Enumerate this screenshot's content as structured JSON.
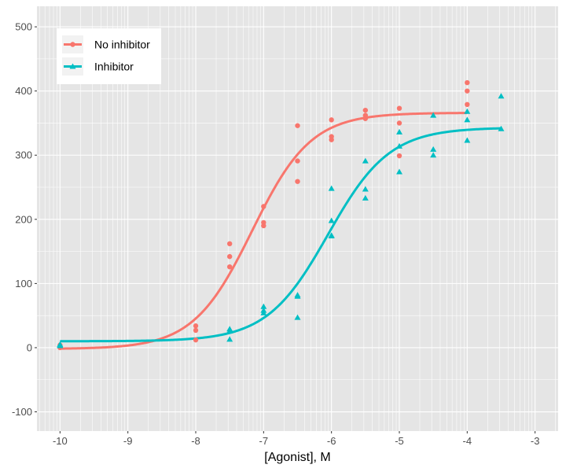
{
  "chart_data": {
    "type": "scatter",
    "title": "",
    "xlabel": "[Agonist], M",
    "ylabel": "",
    "xlim": [
      -10.34,
      -2.66
    ],
    "ylim": [
      -130,
      532
    ],
    "x_ticks": [
      -10,
      -9,
      -8,
      -7,
      -6,
      -5,
      -4,
      -3
    ],
    "y_ticks": [
      -100,
      0,
      100,
      200,
      300,
      400,
      500
    ],
    "grid": true,
    "x_minor_grid": "log-spaced within each decade",
    "legend_placement": "top-left",
    "background": "#e5e5e5",
    "series": [
      {
        "name": "No inhibitor",
        "color": "#f8766d",
        "marker": "circle",
        "points": [
          [
            -10,
            0
          ],
          [
            -10,
            2
          ],
          [
            -10,
            4
          ],
          [
            -8,
            34
          ],
          [
            -8,
            27
          ],
          [
            -8,
            12
          ],
          [
            -7.5,
            162
          ],
          [
            -7.5,
            142
          ],
          [
            -7.5,
            126
          ],
          [
            -7,
            220
          ],
          [
            -7,
            195
          ],
          [
            -7,
            190
          ],
          [
            -6.5,
            346
          ],
          [
            -6.5,
            291
          ],
          [
            -6.5,
            259
          ],
          [
            -6,
            355
          ],
          [
            -6,
            329
          ],
          [
            -6,
            324
          ],
          [
            -5.5,
            370
          ],
          [
            -5.5,
            362
          ],
          [
            -5.5,
            357
          ],
          [
            -5,
            373
          ],
          [
            -5,
            350
          ],
          [
            -5,
            299
          ],
          [
            -4,
            413
          ],
          [
            -4,
            400
          ],
          [
            -4,
            379
          ]
        ],
        "fit": {
          "model": "four-parameter logistic",
          "bottom": -2,
          "top": 366,
          "logEC50": -7.17,
          "hill": 1.0,
          "x_range": [
            -10,
            -4
          ]
        }
      },
      {
        "name": "Inhibitor",
        "color": "#00bfc4",
        "marker": "triangle",
        "points": [
          [
            -10,
            3
          ],
          [
            -10,
            5
          ],
          [
            -10,
            4
          ],
          [
            -7.5,
            29
          ],
          [
            -7.5,
            26
          ],
          [
            -7.5,
            13
          ],
          [
            -7,
            64
          ],
          [
            -7,
            58
          ],
          [
            -7,
            54
          ],
          [
            -6.5,
            82
          ],
          [
            -6.5,
            80
          ],
          [
            -6.5,
            47
          ],
          [
            -6,
            248
          ],
          [
            -6,
            198
          ],
          [
            -6,
            175
          ],
          [
            -6,
            174
          ],
          [
            -5.5,
            291
          ],
          [
            -5.5,
            247
          ],
          [
            -5.5,
            233
          ],
          [
            -5,
            336
          ],
          [
            -5,
            314
          ],
          [
            -5,
            274
          ],
          [
            -4.5,
            362
          ],
          [
            -4.5,
            309
          ],
          [
            -4.5,
            300
          ],
          [
            -4,
            368
          ],
          [
            -4,
            355
          ],
          [
            -4,
            323
          ],
          [
            -3.5,
            392
          ],
          [
            -3.5,
            341
          ]
        ],
        "fit": {
          "model": "four-parameter logistic",
          "bottom": 10,
          "top": 343,
          "logEC50": -6.05,
          "hill": 0.96,
          "x_range": [
            -10,
            -3.5
          ]
        }
      }
    ]
  }
}
